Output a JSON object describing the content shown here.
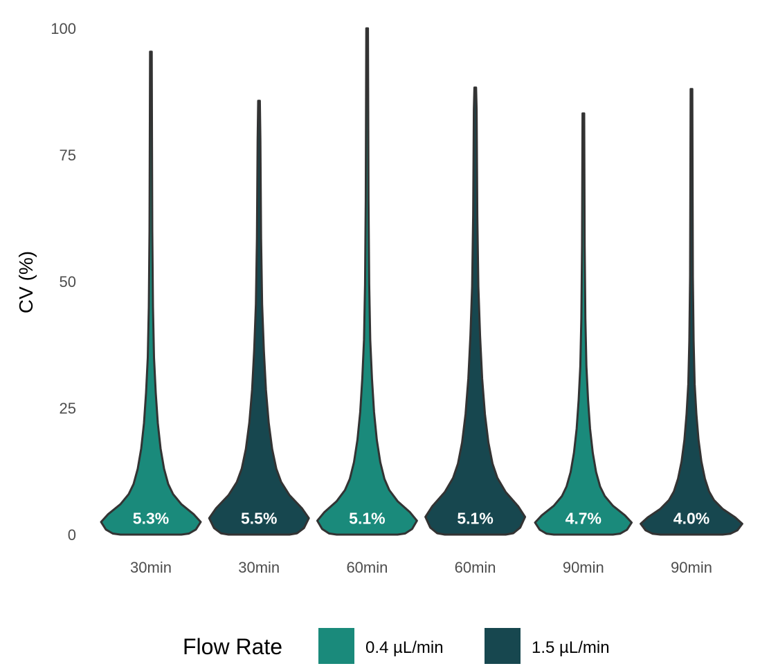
{
  "chart_data": {
    "type": "violin",
    "ylabel": "CV (%)",
    "xlabel": "",
    "ylim": [
      0,
      100
    ],
    "yticks": [
      0,
      25,
      50,
      75,
      100
    ],
    "grid": false,
    "categories": [
      "30min",
      "30min",
      "60min",
      "60min",
      "90min",
      "90min"
    ],
    "groups": [
      "0.4 µL/min",
      "1.5 µL/min",
      "0.4 µL/min",
      "1.5 µL/min",
      "0.4 µL/min",
      "1.5 µL/min"
    ],
    "labels": [
      "5.3%",
      "5.5%",
      "5.1%",
      "5.1%",
      "4.7%",
      "4.0%"
    ],
    "medians": [
      5.3,
      5.5,
      5.1,
      5.1,
      4.7,
      4.0
    ],
    "min": [
      0,
      0,
      0,
      0,
      0,
      0
    ],
    "max": [
      95.4,
      85.7,
      100,
      88.3,
      83.2,
      88.0
    ],
    "legend": {
      "title": "Flow Rate",
      "position": "bottom",
      "items": [
        {
          "label": "0.4 µL/min",
          "color": "#1a8a7b"
        },
        {
          "label": "1.5 µL/min",
          "color": "#17474f"
        }
      ]
    },
    "outline_color": "#333333"
  }
}
